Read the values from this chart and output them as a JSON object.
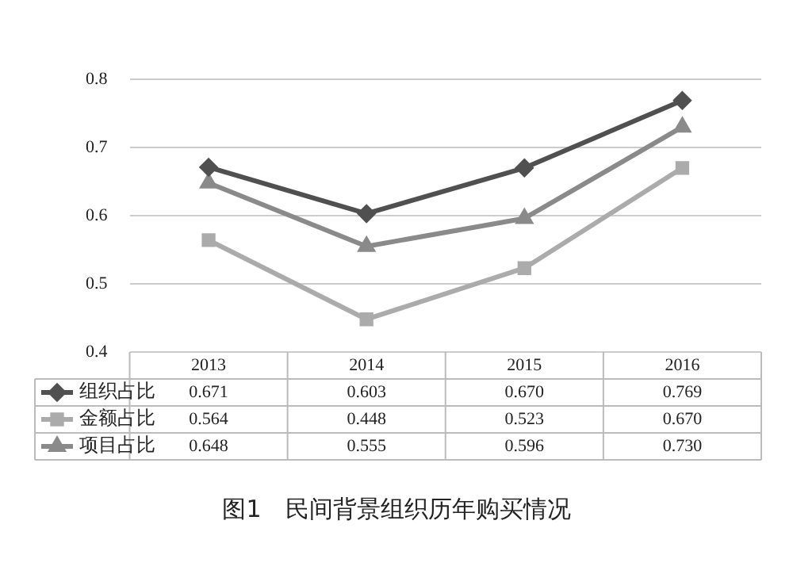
{
  "chart_data": {
    "type": "line",
    "categories": [
      "2013",
      "2014",
      "2015",
      "2016"
    ],
    "series": [
      {
        "name": "组织占比",
        "color": "#505050",
        "marker": "diamond",
        "values": [
          0.671,
          0.603,
          0.67,
          0.769
        ],
        "value_labels": [
          "0.671",
          "0.603",
          "0.670",
          "0.769"
        ]
      },
      {
        "name": "金额占比",
        "color": "#ababab",
        "marker": "square",
        "values": [
          0.564,
          0.448,
          0.523,
          0.67
        ],
        "value_labels": [
          "0.564",
          "0.448",
          "0.523",
          "0.670"
        ]
      },
      {
        "name": "项目占比",
        "color": "#8a8a8a",
        "marker": "triangle",
        "values": [
          0.648,
          0.555,
          0.596,
          0.73
        ],
        "value_labels": [
          "0.648",
          "0.555",
          "0.596",
          "0.730"
        ]
      }
    ],
    "ylim": [
      0.4,
      0.8
    ],
    "yticks": [
      0.4,
      0.5,
      0.6,
      0.7,
      0.8
    ],
    "grid": "y",
    "legend": "bottom left",
    "annotations": [
      "图1　民间背景组织历年购买情况"
    ]
  }
}
